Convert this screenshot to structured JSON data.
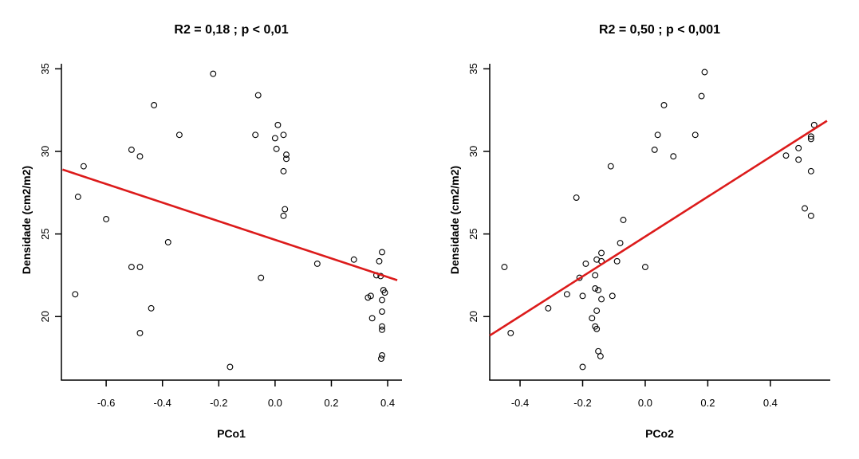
{
  "figure": {
    "background": "#ffffff",
    "text_color": "#000000",
    "point_color": "#000000",
    "trend_color": "#dc1b1b"
  },
  "chart_data": [
    {
      "type": "scatter",
      "title": "R2 = 0,18 ; p < 0,01",
      "xlabel": "PCo1",
      "ylabel": "Densidade (cm2/m2)",
      "grid": false,
      "legend": "none",
      "xlim": [
        -0.759,
        0.448
      ],
      "ylim": [
        16.2,
        35.5
      ],
      "x_tick_values": [
        -0.6,
        -0.4,
        -0.2,
        0.0,
        0.2,
        0.4
      ],
      "x_tick_labels": [
        "-0.6",
        "-0.4",
        "-0.2",
        "0.0",
        "0.2",
        "0.4"
      ],
      "y_tick_values": [
        20,
        25,
        30,
        35
      ],
      "y_tick_labels": [
        "20",
        "25",
        "30",
        "35"
      ],
      "points": [
        [
          -0.22,
          34.7
        ],
        [
          -0.06,
          33.4
        ],
        [
          -0.43,
          32.8
        ],
        [
          0.01,
          31.6
        ],
        [
          -0.07,
          31.0
        ],
        [
          -0.34,
          31.0
        ],
        [
          0.0,
          30.8
        ],
        [
          0.03,
          31.0
        ],
        [
          -0.51,
          30.1
        ],
        [
          0.005,
          30.15
        ],
        [
          -0.48,
          29.7
        ],
        [
          0.04,
          29.8
        ],
        [
          0.04,
          29.55
        ],
        [
          -0.68,
          29.1
        ],
        [
          0.03,
          28.8
        ],
        [
          -0.7,
          27.25
        ],
        [
          0.035,
          26.5
        ],
        [
          0.03,
          26.1
        ],
        [
          -0.6,
          25.9
        ],
        [
          -0.38,
          24.5
        ],
        [
          -0.51,
          23.0
        ],
        [
          -0.48,
          23.0
        ],
        [
          0.15,
          23.2
        ],
        [
          0.28,
          23.45
        ],
        [
          -0.05,
          22.35
        ],
        [
          0.38,
          23.9
        ],
        [
          0.37,
          23.35
        ],
        [
          0.36,
          22.5
        ],
        [
          0.375,
          22.45
        ],
        [
          -0.71,
          21.35
        ],
        [
          0.385,
          21.6
        ],
        [
          0.39,
          21.45
        ],
        [
          0.33,
          21.15
        ],
        [
          0.34,
          21.25
        ],
        [
          0.38,
          21.0
        ],
        [
          -0.44,
          20.5
        ],
        [
          0.38,
          20.3
        ],
        [
          0.345,
          19.9
        ],
        [
          0.38,
          19.4
        ],
        [
          0.38,
          19.2
        ],
        [
          -0.48,
          19.0
        ],
        [
          0.38,
          17.65
        ],
        [
          0.377,
          17.45
        ],
        [
          -0.16,
          16.95
        ]
      ],
      "trend_line": {
        "x1": -0.755,
        "y1": 28.9,
        "x2": 0.434,
        "y2": 22.2
      }
    },
    {
      "type": "scatter",
      "title": "R2 = 0,50 ; p < 0,001",
      "xlabel": "PCo2",
      "ylabel": "Densidade (cm2/m2)",
      "grid": false,
      "legend": "none",
      "xlim": [
        -0.497,
        0.589
      ],
      "ylim": [
        16.2,
        35.5
      ],
      "x_tick_values": [
        -0.4,
        -0.2,
        0.0,
        0.2,
        0.4
      ],
      "x_tick_labels": [
        "-0.4",
        "-0.2",
        "0.0",
        "0.2",
        "0.4"
      ],
      "y_tick_values": [
        20,
        25,
        30,
        35
      ],
      "y_tick_labels": [
        "20",
        "25",
        "30",
        "35"
      ],
      "points": [
        [
          0.19,
          34.8
        ],
        [
          0.18,
          33.35
        ],
        [
          0.06,
          32.8
        ],
        [
          0.54,
          31.6
        ],
        [
          0.53,
          30.9
        ],
        [
          0.53,
          30.75
        ],
        [
          0.16,
          31.0
        ],
        [
          0.04,
          31.0
        ],
        [
          0.03,
          30.1
        ],
        [
          0.49,
          30.2
        ],
        [
          0.09,
          29.7
        ],
        [
          0.45,
          29.75
        ],
        [
          0.49,
          29.5
        ],
        [
          0.53,
          28.8
        ],
        [
          -0.11,
          29.1
        ],
        [
          -0.22,
          27.2
        ],
        [
          0.51,
          26.55
        ],
        [
          0.53,
          26.1
        ],
        [
          -0.07,
          25.85
        ],
        [
          -0.08,
          24.45
        ],
        [
          -0.14,
          23.85
        ],
        [
          -0.45,
          23.0
        ],
        [
          -0.19,
          23.2
        ],
        [
          -0.155,
          23.45
        ],
        [
          -0.14,
          23.35
        ],
        [
          -0.09,
          23.35
        ],
        [
          0.0,
          23.0
        ],
        [
          -0.21,
          22.35
        ],
        [
          -0.16,
          22.5
        ],
        [
          -0.25,
          21.35
        ],
        [
          -0.2,
          21.25
        ],
        [
          -0.16,
          21.7
        ],
        [
          -0.15,
          21.6
        ],
        [
          -0.14,
          21.05
        ],
        [
          -0.105,
          21.25
        ],
        [
          -0.31,
          20.5
        ],
        [
          -0.155,
          20.35
        ],
        [
          -0.17,
          19.9
        ],
        [
          -0.43,
          19.0
        ],
        [
          -0.16,
          19.4
        ],
        [
          -0.155,
          19.25
        ],
        [
          -0.15,
          17.9
        ],
        [
          -0.143,
          17.6
        ],
        [
          -0.2,
          16.95
        ]
      ],
      "trend_line": {
        "x1": -0.497,
        "y1": 18.85,
        "x2": 0.581,
        "y2": 31.85
      }
    }
  ]
}
